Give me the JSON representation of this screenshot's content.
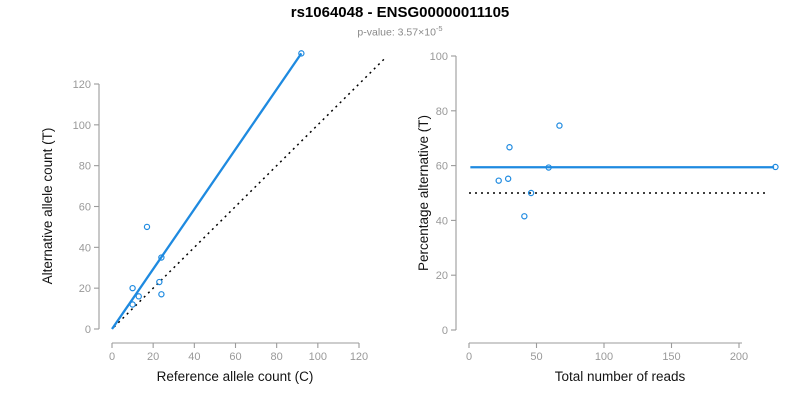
{
  "header": {
    "title": "rs1064048 - ENSG00000011105",
    "subtitle_prefix": "p-value: 3.57×10",
    "subtitle_exponent": "-5"
  },
  "colors": {
    "accent_blue": "#1e8ae0",
    "line_black": "#000000",
    "tick_gray": "#999999",
    "axis_gray": "#9b9b9b",
    "subtitle_gray": "#8a8a8a"
  },
  "chart_data": [
    {
      "type": "scatter",
      "name": "allele-counts-panel",
      "title": "",
      "xlabel": "Reference allele count (C)",
      "ylabel": "Alternative allele count (T)",
      "xlim": [
        0,
        120
      ],
      "ylim": [
        0,
        120
      ],
      "xticks": [
        0,
        20,
        40,
        60,
        80,
        100,
        120
      ],
      "yticks": [
        0,
        20,
        40,
        60,
        80,
        100,
        120
      ],
      "grid": false,
      "legend": null,
      "points": [
        [
          10,
          12
        ],
        [
          10,
          20
        ],
        [
          13,
          16
        ],
        [
          17,
          50
        ],
        [
          23,
          23
        ],
        [
          24,
          17
        ],
        [
          24,
          35
        ],
        [
          92,
          135
        ]
      ],
      "lines": [
        {
          "name": "identity-line",
          "style": "dotted",
          "color": "black",
          "from": [
            1,
            1
          ],
          "to": [
            133,
            133
          ]
        },
        {
          "name": "fit-line",
          "style": "solid",
          "color": "blue",
          "from": [
            0,
            0
          ],
          "to": [
            92,
            135
          ]
        }
      ]
    },
    {
      "type": "scatter",
      "name": "percentage-reads-panel",
      "title": "",
      "xlabel": "Total number of reads",
      "ylabel": "Percentage alternative (T)",
      "xlim": [
        0,
        200
      ],
      "ylim": [
        0,
        100
      ],
      "xticks": [
        0,
        50,
        100,
        150,
        200
      ],
      "yticks": [
        0,
        20,
        40,
        60,
        80,
        100
      ],
      "grid": false,
      "legend": null,
      "points": [
        [
          22,
          54.5
        ],
        [
          29,
          55.2
        ],
        [
          30,
          66.7
        ],
        [
          41,
          41.5
        ],
        [
          46,
          50
        ],
        [
          59,
          59.3
        ],
        [
          67,
          74.6
        ],
        [
          227,
          59.5
        ]
      ],
      "lines": [
        {
          "name": "null-50-line",
          "style": "dotted",
          "color": "black",
          "from": [
            0,
            50
          ],
          "to": [
            222,
            50
          ]
        },
        {
          "name": "mean-percentage-line",
          "style": "solid",
          "color": "blue",
          "from": [
            1,
            59.4
          ],
          "to": [
            226,
            59.4
          ]
        }
      ]
    }
  ]
}
